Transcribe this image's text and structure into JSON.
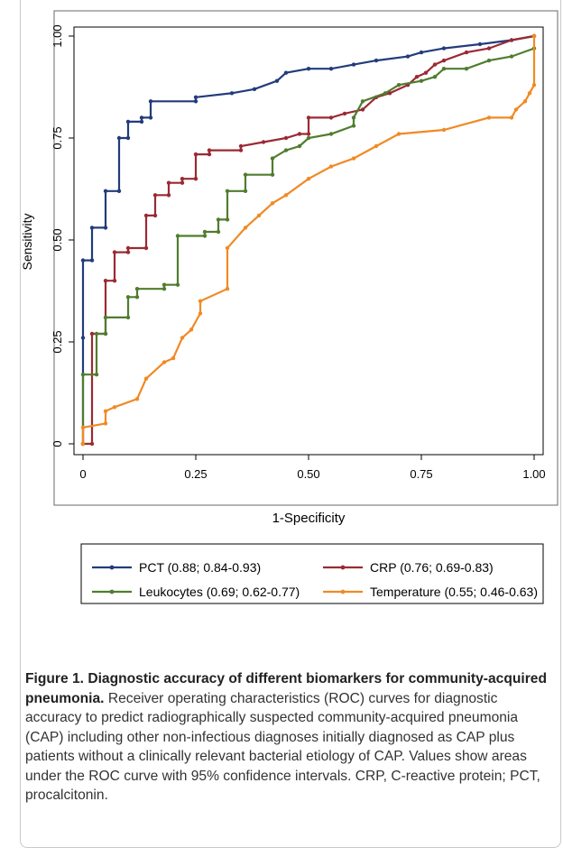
{
  "colors": {
    "PCT": "#223c7a",
    "CRP": "#9a2a34",
    "Leukocytes": "#4f7d2e",
    "Temperature": "#f08a24"
  },
  "caption": {
    "title": "Figure 1. Diagnostic accuracy of different biomarkers for community-acquired pneumonia.",
    "text": " Receiver operating characteristics (ROC) curves for diagnostic accuracy to predict radiographically suspected community-acquired pneumonia (CAP) including other non-infectious diagnoses initially diagnosed as CAP plus patients without a clinically relevant bacterial etiology of CAP. Values show areas under the ROC curve with 95% confidence intervals. CRP, C-reactive protein; PCT, procalcitonin."
  },
  "chart_data": {
    "type": "line",
    "xlabel": "1-Specificity",
    "ylabel": "Sensitivity",
    "xlim": [
      0,
      1
    ],
    "ylim": [
      0,
      1
    ],
    "x_ticks": [
      "0",
      "0.25",
      "0.50",
      "0.75",
      "1.00"
    ],
    "y_ticks": [
      "0",
      "0.25",
      "0.50",
      "0.75",
      "1.00"
    ],
    "grid": false,
    "legend_position": "bottom",
    "series": [
      {
        "name": "PCT (0.88; 0.84-0.93)",
        "points": [
          [
            0,
            0
          ],
          [
            0,
            0.26
          ],
          [
            0,
            0.45
          ],
          [
            0.02,
            0.45
          ],
          [
            0.02,
            0.53
          ],
          [
            0.05,
            0.53
          ],
          [
            0.05,
            0.62
          ],
          [
            0.08,
            0.62
          ],
          [
            0.08,
            0.75
          ],
          [
            0.1,
            0.75
          ],
          [
            0.1,
            0.79
          ],
          [
            0.13,
            0.79
          ],
          [
            0.13,
            0.8
          ],
          [
            0.15,
            0.8
          ],
          [
            0.15,
            0.84
          ],
          [
            0.25,
            0.84
          ],
          [
            0.25,
            0.85
          ],
          [
            0.33,
            0.86
          ],
          [
            0.38,
            0.87
          ],
          [
            0.43,
            0.89
          ],
          [
            0.45,
            0.91
          ],
          [
            0.5,
            0.92
          ],
          [
            0.55,
            0.92
          ],
          [
            0.6,
            0.93
          ],
          [
            0.65,
            0.94
          ],
          [
            0.72,
            0.95
          ],
          [
            0.75,
            0.96
          ],
          [
            0.8,
            0.97
          ],
          [
            0.88,
            0.98
          ],
          [
            0.95,
            0.99
          ],
          [
            1.0,
            1.0
          ]
        ]
      },
      {
        "name": "CRP (0.76; 0.69-0.83)",
        "points": [
          [
            0,
            0
          ],
          [
            0.02,
            0
          ],
          [
            0.02,
            0.27
          ],
          [
            0.05,
            0.27
          ],
          [
            0.05,
            0.4
          ],
          [
            0.07,
            0.4
          ],
          [
            0.07,
            0.47
          ],
          [
            0.1,
            0.47
          ],
          [
            0.1,
            0.48
          ],
          [
            0.14,
            0.48
          ],
          [
            0.14,
            0.56
          ],
          [
            0.16,
            0.56
          ],
          [
            0.16,
            0.61
          ],
          [
            0.19,
            0.61
          ],
          [
            0.19,
            0.64
          ],
          [
            0.22,
            0.64
          ],
          [
            0.22,
            0.65
          ],
          [
            0.25,
            0.65
          ],
          [
            0.25,
            0.71
          ],
          [
            0.28,
            0.71
          ],
          [
            0.28,
            0.72
          ],
          [
            0.35,
            0.72
          ],
          [
            0.35,
            0.73
          ],
          [
            0.4,
            0.74
          ],
          [
            0.45,
            0.75
          ],
          [
            0.48,
            0.76
          ],
          [
            0.5,
            0.76
          ],
          [
            0.5,
            0.8
          ],
          [
            0.55,
            0.8
          ],
          [
            0.58,
            0.81
          ],
          [
            0.62,
            0.82
          ],
          [
            0.65,
            0.85
          ],
          [
            0.68,
            0.86
          ],
          [
            0.72,
            0.88
          ],
          [
            0.74,
            0.9
          ],
          [
            0.76,
            0.91
          ],
          [
            0.78,
            0.93
          ],
          [
            0.8,
            0.94
          ],
          [
            0.85,
            0.96
          ],
          [
            0.9,
            0.97
          ],
          [
            0.95,
            0.99
          ],
          [
            1.0,
            1.0
          ]
        ]
      },
      {
        "name": "Leukocytes (0.69; 0.62-0.77)",
        "points": [
          [
            0,
            0
          ],
          [
            0,
            0.17
          ],
          [
            0.03,
            0.17
          ],
          [
            0.03,
            0.27
          ],
          [
            0.05,
            0.27
          ],
          [
            0.05,
            0.31
          ],
          [
            0.1,
            0.31
          ],
          [
            0.1,
            0.36
          ],
          [
            0.12,
            0.36
          ],
          [
            0.12,
            0.38
          ],
          [
            0.18,
            0.38
          ],
          [
            0.18,
            0.39
          ],
          [
            0.21,
            0.39
          ],
          [
            0.21,
            0.51
          ],
          [
            0.27,
            0.51
          ],
          [
            0.27,
            0.52
          ],
          [
            0.3,
            0.52
          ],
          [
            0.3,
            0.55
          ],
          [
            0.32,
            0.55
          ],
          [
            0.32,
            0.62
          ],
          [
            0.36,
            0.62
          ],
          [
            0.36,
            0.66
          ],
          [
            0.42,
            0.66
          ],
          [
            0.42,
            0.7
          ],
          [
            0.45,
            0.72
          ],
          [
            0.48,
            0.73
          ],
          [
            0.5,
            0.75
          ],
          [
            0.55,
            0.76
          ],
          [
            0.6,
            0.78
          ],
          [
            0.6,
            0.8
          ],
          [
            0.62,
            0.84
          ],
          [
            0.67,
            0.86
          ],
          [
            0.7,
            0.88
          ],
          [
            0.75,
            0.89
          ],
          [
            0.78,
            0.9
          ],
          [
            0.8,
            0.92
          ],
          [
            0.85,
            0.92
          ],
          [
            0.9,
            0.94
          ],
          [
            0.95,
            0.95
          ],
          [
            1.0,
            0.97
          ]
        ]
      },
      {
        "name": "Temperature (0.55; 0.46-0.63)",
        "points": [
          [
            0,
            0
          ],
          [
            0,
            0.04
          ],
          [
            0.05,
            0.05
          ],
          [
            0.05,
            0.08
          ],
          [
            0.07,
            0.09
          ],
          [
            0.12,
            0.11
          ],
          [
            0.14,
            0.16
          ],
          [
            0.18,
            0.2
          ],
          [
            0.2,
            0.21
          ],
          [
            0.22,
            0.26
          ],
          [
            0.24,
            0.28
          ],
          [
            0.26,
            0.32
          ],
          [
            0.26,
            0.35
          ],
          [
            0.32,
            0.38
          ],
          [
            0.32,
            0.48
          ],
          [
            0.36,
            0.53
          ],
          [
            0.39,
            0.56
          ],
          [
            0.42,
            0.59
          ],
          [
            0.45,
            0.61
          ],
          [
            0.5,
            0.65
          ],
          [
            0.55,
            0.68
          ],
          [
            0.6,
            0.7
          ],
          [
            0.65,
            0.73
          ],
          [
            0.7,
            0.76
          ],
          [
            0.8,
            0.77
          ],
          [
            0.9,
            0.8
          ],
          [
            0.95,
            0.8
          ],
          [
            0.96,
            0.82
          ],
          [
            0.98,
            0.84
          ],
          [
            0.99,
            0.86
          ],
          [
            1.0,
            0.88
          ],
          [
            1.0,
            1.0
          ]
        ]
      }
    ]
  }
}
